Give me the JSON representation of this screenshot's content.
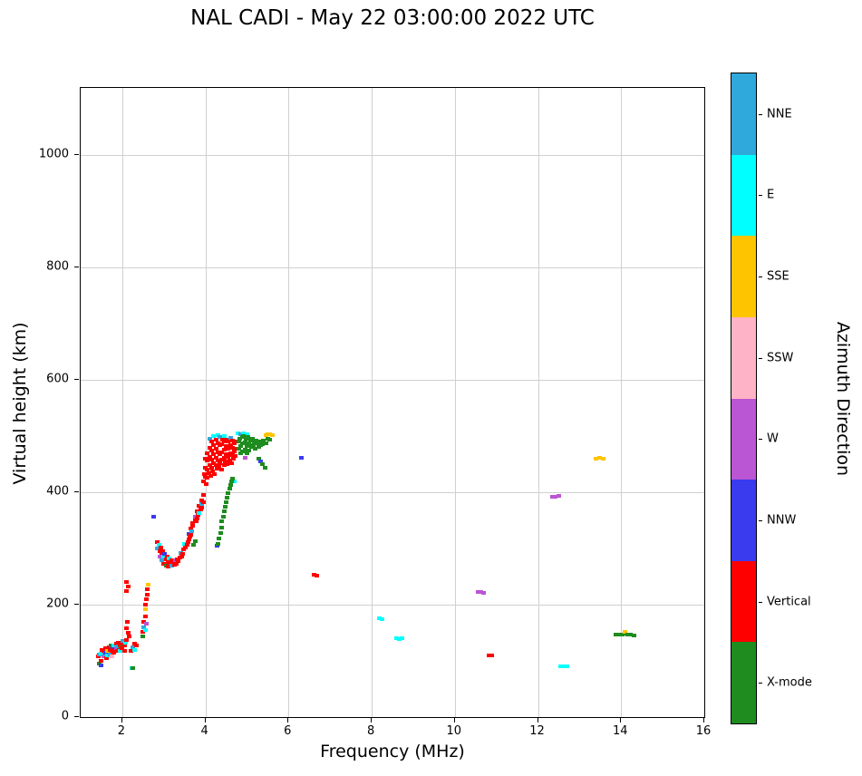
{
  "chart_data": {
    "type": "scatter",
    "title": "NAL CADI - May 22 03:00:00 2022 UTC",
    "xlabel": "Frequency (MHz)",
    "ylabel": "Virtual height (km)",
    "legend_title": "Azimuth Direction",
    "legend_position": "right-colorbar",
    "grid": true,
    "xlim": [
      1,
      16
    ],
    "ylim": [
      0,
      1120
    ],
    "xticks": [
      2,
      4,
      6,
      8,
      10,
      12,
      14,
      16
    ],
    "yticks": [
      0,
      200,
      400,
      600,
      800,
      1000
    ],
    "categories": [
      {
        "label": "NNE",
        "color": "#2FA8DC"
      },
      {
        "label": "E",
        "color": "#00FFFF"
      },
      {
        "label": "SSE",
        "color": "#FFC400"
      },
      {
        "label": "SSW",
        "color": "#FFB3C6"
      },
      {
        "label": "W",
        "color": "#BA55D3"
      },
      {
        "label": "NNW",
        "color": "#3A3AEF"
      },
      {
        "label": "Vertical",
        "color": "#FF0000"
      },
      {
        "label": "X-mode",
        "color": "#1E8C1E"
      }
    ],
    "points": [
      [
        1.42,
        108,
        6
      ],
      [
        1.45,
        95,
        7
      ],
      [
        1.45,
        112,
        0
      ],
      [
        1.48,
        92,
        5
      ],
      [
        1.5,
        100,
        6
      ],
      [
        1.5,
        113,
        1
      ],
      [
        1.52,
        120,
        6
      ],
      [
        1.55,
        108,
        4
      ],
      [
        1.55,
        118,
        6
      ],
      [
        1.58,
        112,
        0
      ],
      [
        1.6,
        122,
        6
      ],
      [
        1.6,
        115,
        5
      ],
      [
        1.62,
        105,
        6
      ],
      [
        1.65,
        118,
        2
      ],
      [
        1.65,
        110,
        1
      ],
      [
        1.68,
        125,
        6
      ],
      [
        1.7,
        112,
        0
      ],
      [
        1.7,
        120,
        6
      ],
      [
        1.72,
        128,
        7
      ],
      [
        1.75,
        118,
        6
      ],
      [
        1.75,
        108,
        3
      ],
      [
        1.78,
        125,
        5
      ],
      [
        1.8,
        115,
        6
      ],
      [
        1.8,
        128,
        1
      ],
      [
        1.82,
        120,
        6
      ],
      [
        1.85,
        130,
        6
      ],
      [
        1.85,
        122,
        4
      ],
      [
        1.88,
        118,
        6
      ],
      [
        1.9,
        126,
        0
      ],
      [
        1.9,
        133,
        6
      ],
      [
        1.92,
        120,
        6
      ],
      [
        1.95,
        128,
        6
      ],
      [
        1.95,
        118,
        1
      ],
      [
        1.98,
        124,
        7
      ],
      [
        2.0,
        130,
        6
      ],
      [
        2.0,
        122,
        6
      ],
      [
        2.02,
        135,
        0
      ],
      [
        2.05,
        128,
        6
      ],
      [
        2.05,
        118,
        6
      ],
      [
        2.08,
        132,
        1
      ],
      [
        2.1,
        138,
        6
      ],
      [
        2.1,
        240,
        6
      ],
      [
        2.14,
        232,
        6
      ],
      [
        2.1,
        225,
        6
      ],
      [
        2.12,
        170,
        6
      ],
      [
        2.1,
        158,
        6
      ],
      [
        2.14,
        150,
        6
      ],
      [
        2.16,
        143,
        6
      ],
      [
        2.2,
        118,
        6
      ],
      [
        2.22,
        88,
        1
      ],
      [
        2.26,
        88,
        7
      ],
      [
        2.25,
        125,
        0
      ],
      [
        2.3,
        130,
        6
      ],
      [
        2.3,
        120,
        1
      ],
      [
        2.35,
        128,
        6
      ],
      [
        2.5,
        143,
        7
      ],
      [
        2.5,
        152,
        6
      ],
      [
        2.52,
        160,
        0
      ],
      [
        2.52,
        170,
        6
      ],
      [
        2.55,
        180,
        6
      ],
      [
        2.55,
        192,
        2
      ],
      [
        2.56,
        200,
        6
      ],
      [
        2.58,
        210,
        6
      ],
      [
        2.58,
        166,
        4
      ],
      [
        2.6,
        218,
        6
      ],
      [
        2.6,
        228,
        6
      ],
      [
        2.62,
        235,
        2
      ],
      [
        2.55,
        155,
        1
      ],
      [
        2.75,
        356,
        5
      ],
      [
        2.85,
        312,
        6
      ],
      [
        2.85,
        300,
        0
      ],
      [
        2.88,
        306,
        1
      ],
      [
        2.9,
        296,
        6
      ],
      [
        2.9,
        286,
        4
      ],
      [
        2.92,
        302,
        6
      ],
      [
        2.95,
        292,
        6
      ],
      [
        2.95,
        279,
        0
      ],
      [
        2.98,
        296,
        6
      ],
      [
        3.0,
        286,
        1
      ],
      [
        3.0,
        273,
        6
      ],
      [
        3.02,
        291,
        5
      ],
      [
        3.05,
        281,
        6
      ],
      [
        3.05,
        269,
        7
      ],
      [
        3.08,
        286,
        6
      ],
      [
        3.1,
        276,
        6
      ],
      [
        3.1,
        268,
        6
      ],
      [
        3.12,
        283,
        1
      ],
      [
        3.15,
        273,
        6
      ],
      [
        3.18,
        279,
        6
      ],
      [
        3.2,
        270,
        0
      ],
      [
        3.22,
        276,
        6
      ],
      [
        3.25,
        272,
        6
      ],
      [
        3.28,
        280,
        4
      ],
      [
        3.3,
        273,
        6
      ],
      [
        3.32,
        281,
        6
      ],
      [
        3.35,
        278,
        6
      ],
      [
        3.38,
        284,
        6
      ],
      [
        3.4,
        292,
        0
      ],
      [
        3.42,
        286,
        6
      ],
      [
        3.45,
        291,
        6
      ],
      [
        3.48,
        298,
        6
      ],
      [
        3.5,
        308,
        1
      ],
      [
        3.52,
        302,
        6
      ],
      [
        3.55,
        306,
        6
      ],
      [
        3.58,
        312,
        6
      ],
      [
        3.6,
        316,
        6
      ],
      [
        3.6,
        326,
        5
      ],
      [
        3.62,
        321,
        6
      ],
      [
        3.65,
        325,
        6
      ],
      [
        3.65,
        336,
        6
      ],
      [
        3.68,
        331,
        0
      ],
      [
        3.7,
        340,
        6
      ],
      [
        3.7,
        346,
        6
      ],
      [
        3.72,
        307,
        7
      ],
      [
        3.75,
        313,
        7
      ],
      [
        3.75,
        352,
        6
      ],
      [
        3.75,
        356,
        4
      ],
      [
        3.78,
        348,
        6
      ],
      [
        3.8,
        353,
        6
      ],
      [
        3.8,
        366,
        6
      ],
      [
        3.82,
        360,
        6
      ],
      [
        3.85,
        363,
        1
      ],
      [
        3.85,
        376,
        6
      ],
      [
        3.88,
        370,
        6
      ],
      [
        3.9,
        373,
        6
      ],
      [
        3.9,
        386,
        6
      ],
      [
        3.92,
        380,
        0
      ],
      [
        3.95,
        383,
        6
      ],
      [
        3.95,
        396,
        6
      ],
      [
        3.95,
        420,
        6
      ],
      [
        3.98,
        432,
        6
      ],
      [
        4.0,
        428,
        6
      ],
      [
        4.0,
        444,
        6
      ],
      [
        4.0,
        460,
        6
      ],
      [
        4.02,
        415,
        6
      ],
      [
        4.05,
        426,
        6
      ],
      [
        4.05,
        440,
        6
      ],
      [
        4.05,
        456,
        6
      ],
      [
        4.05,
        470,
        6
      ],
      [
        4.08,
        435,
        6
      ],
      [
        4.1,
        448,
        6
      ],
      [
        4.1,
        464,
        6
      ],
      [
        4.1,
        480,
        6
      ],
      [
        4.1,
        495,
        0
      ],
      [
        4.12,
        430,
        6
      ],
      [
        4.15,
        444,
        6
      ],
      [
        4.15,
        458,
        6
      ],
      [
        4.15,
        474,
        6
      ],
      [
        4.15,
        490,
        6
      ],
      [
        4.18,
        438,
        6
      ],
      [
        4.2,
        452,
        6
      ],
      [
        4.2,
        468,
        6
      ],
      [
        4.2,
        484,
        6
      ],
      [
        4.2,
        500,
        1
      ],
      [
        4.22,
        433,
        6
      ],
      [
        4.25,
        448,
        6
      ],
      [
        4.25,
        462,
        6
      ],
      [
        4.25,
        478,
        6
      ],
      [
        4.25,
        494,
        6
      ],
      [
        4.28,
        442,
        6
      ],
      [
        4.3,
        456,
        6
      ],
      [
        4.3,
        472,
        6
      ],
      [
        4.3,
        488,
        6
      ],
      [
        4.3,
        502,
        1
      ],
      [
        4.32,
        446,
        6
      ],
      [
        4.35,
        452,
        6
      ],
      [
        4.35,
        468,
        6
      ],
      [
        4.35,
        484,
        6
      ],
      [
        4.35,
        498,
        0
      ],
      [
        4.38,
        440,
        6
      ],
      [
        4.4,
        458,
        6
      ],
      [
        4.4,
        472,
        6
      ],
      [
        4.4,
        486,
        6
      ],
      [
        4.42,
        494,
        6
      ],
      [
        4.45,
        448,
        6
      ],
      [
        4.45,
        462,
        6
      ],
      [
        4.45,
        476,
        6
      ],
      [
        4.45,
        490,
        6
      ],
      [
        4.45,
        501,
        1
      ],
      [
        4.48,
        455,
        6
      ],
      [
        4.5,
        468,
        6
      ],
      [
        4.5,
        482,
        6
      ],
      [
        4.5,
        494,
        6
      ],
      [
        4.52,
        450,
        6
      ],
      [
        4.55,
        463,
        6
      ],
      [
        4.55,
        477,
        6
      ],
      [
        4.55,
        491,
        6
      ],
      [
        4.58,
        457,
        6
      ],
      [
        4.6,
        470,
        6
      ],
      [
        4.6,
        484,
        6
      ],
      [
        4.6,
        497,
        0
      ],
      [
        4.62,
        452,
        6
      ],
      [
        4.65,
        466,
        6
      ],
      [
        4.65,
        480,
        6
      ],
      [
        4.65,
        493,
        6
      ],
      [
        4.68,
        460,
        6
      ],
      [
        4.7,
        473,
        6
      ],
      [
        4.7,
        487,
        6
      ],
      [
        4.7,
        420,
        1
      ],
      [
        4.72,
        465,
        6
      ],
      [
        4.75,
        478,
        6
      ],
      [
        4.75,
        491,
        6
      ],
      [
        4.27,
        305,
        5
      ],
      [
        4.3,
        309,
        7
      ],
      [
        4.33,
        318,
        7
      ],
      [
        4.36,
        328,
        7
      ],
      [
        4.38,
        338,
        7
      ],
      [
        4.4,
        348,
        7
      ],
      [
        4.43,
        357,
        7
      ],
      [
        4.45,
        366,
        7
      ],
      [
        4.48,
        374,
        7
      ],
      [
        4.5,
        382,
        7
      ],
      [
        4.52,
        390,
        7
      ],
      [
        4.55,
        398,
        7
      ],
      [
        4.58,
        406,
        7
      ],
      [
        4.6,
        413,
        7
      ],
      [
        4.63,
        419,
        7
      ],
      [
        4.65,
        424,
        7
      ],
      [
        4.78,
        505,
        1
      ],
      [
        4.85,
        504,
        0
      ],
      [
        4.92,
        505,
        1
      ],
      [
        5.0,
        504,
        1
      ],
      [
        4.8,
        490,
        7
      ],
      [
        4.8,
        478,
        7
      ],
      [
        4.82,
        496,
        7
      ],
      [
        4.85,
        483,
        7
      ],
      [
        4.85,
        469,
        7
      ],
      [
        4.88,
        498,
        7
      ],
      [
        4.9,
        487,
        7
      ],
      [
        4.9,
        473,
        7
      ],
      [
        4.92,
        500,
        7
      ],
      [
        4.95,
        489,
        7
      ],
      [
        4.95,
        476,
        7
      ],
      [
        4.98,
        495,
        7
      ],
      [
        5.0,
        483,
        7
      ],
      [
        5.0,
        470,
        7
      ],
      [
        5.02,
        498,
        7
      ],
      [
        5.05,
        487,
        7
      ],
      [
        5.05,
        474,
        7
      ],
      [
        5.08,
        492,
        7
      ],
      [
        5.1,
        481,
        7
      ],
      [
        5.12,
        495,
        7
      ],
      [
        5.15,
        484,
        7
      ],
      [
        5.18,
        490,
        7
      ],
      [
        5.2,
        478,
        7
      ],
      [
        5.22,
        493,
        7
      ],
      [
        5.25,
        487,
        7
      ],
      [
        5.28,
        481,
        7
      ],
      [
        5.3,
        490,
        7
      ],
      [
        5.32,
        484,
        7
      ],
      [
        5.35,
        491,
        7
      ],
      [
        5.38,
        486,
        7
      ],
      [
        5.4,
        492,
        7
      ],
      [
        5.45,
        488,
        7
      ],
      [
        4.95,
        461,
        4
      ],
      [
        5.28,
        460,
        7
      ],
      [
        5.33,
        455,
        5
      ],
      [
        5.38,
        450,
        7
      ],
      [
        5.43,
        444,
        7
      ],
      [
        5.45,
        502,
        2
      ],
      [
        5.5,
        503,
        2
      ],
      [
        5.55,
        503,
        2
      ],
      [
        5.6,
        502,
        2
      ],
      [
        5.5,
        496,
        7
      ],
      [
        5.55,
        494,
        7
      ],
      [
        6.3,
        461,
        5
      ],
      [
        6.62,
        253,
        6
      ],
      [
        6.68,
        252,
        6
      ],
      [
        8.18,
        176,
        1
      ],
      [
        8.24,
        175,
        1
      ],
      [
        8.6,
        140,
        1
      ],
      [
        8.66,
        139,
        1
      ],
      [
        8.73,
        141,
        1
      ],
      [
        10.55,
        222,
        4
      ],
      [
        10.62,
        222,
        4
      ],
      [
        10.69,
        221,
        4
      ],
      [
        10.82,
        110,
        6
      ],
      [
        10.88,
        110,
        6
      ],
      [
        12.35,
        393,
        4
      ],
      [
        12.42,
        393,
        4
      ],
      [
        12.49,
        394,
        4
      ],
      [
        12.55,
        90,
        1
      ],
      [
        12.62,
        90,
        1
      ],
      [
        12.69,
        90,
        1
      ],
      [
        13.4,
        460,
        2
      ],
      [
        13.48,
        461,
        2
      ],
      [
        13.56,
        460,
        2
      ],
      [
        13.88,
        147,
        7
      ],
      [
        13.95,
        147,
        7
      ],
      [
        14.02,
        147,
        7
      ],
      [
        14.09,
        148,
        7
      ],
      [
        14.1,
        151,
        2
      ],
      [
        14.16,
        147,
        7
      ],
      [
        14.23,
        147,
        7
      ],
      [
        14.3,
        146,
        7
      ]
    ]
  }
}
